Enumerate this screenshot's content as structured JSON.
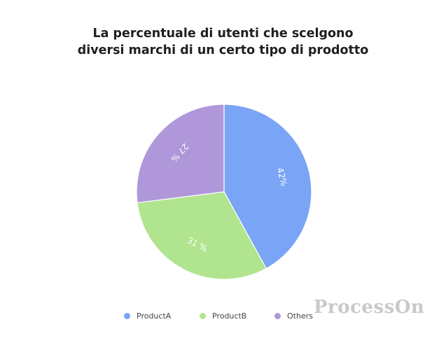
{
  "chart_data": {
    "type": "pie",
    "title_lines": [
      "La percentuale di utenti che scelgono",
      "diversi marchi di un certo tipo di prodotto"
    ],
    "categories": [
      "ProductA",
      "ProductB",
      "Others"
    ],
    "values": [
      42,
      31,
      27
    ],
    "labels": [
      "42%",
      "31 %",
      "27 %"
    ],
    "colors": [
      "#7aa4f5",
      "#b0e48f",
      "#b097d9"
    ],
    "legend_position": "bottom-center"
  },
  "watermark": "ProcessOn"
}
